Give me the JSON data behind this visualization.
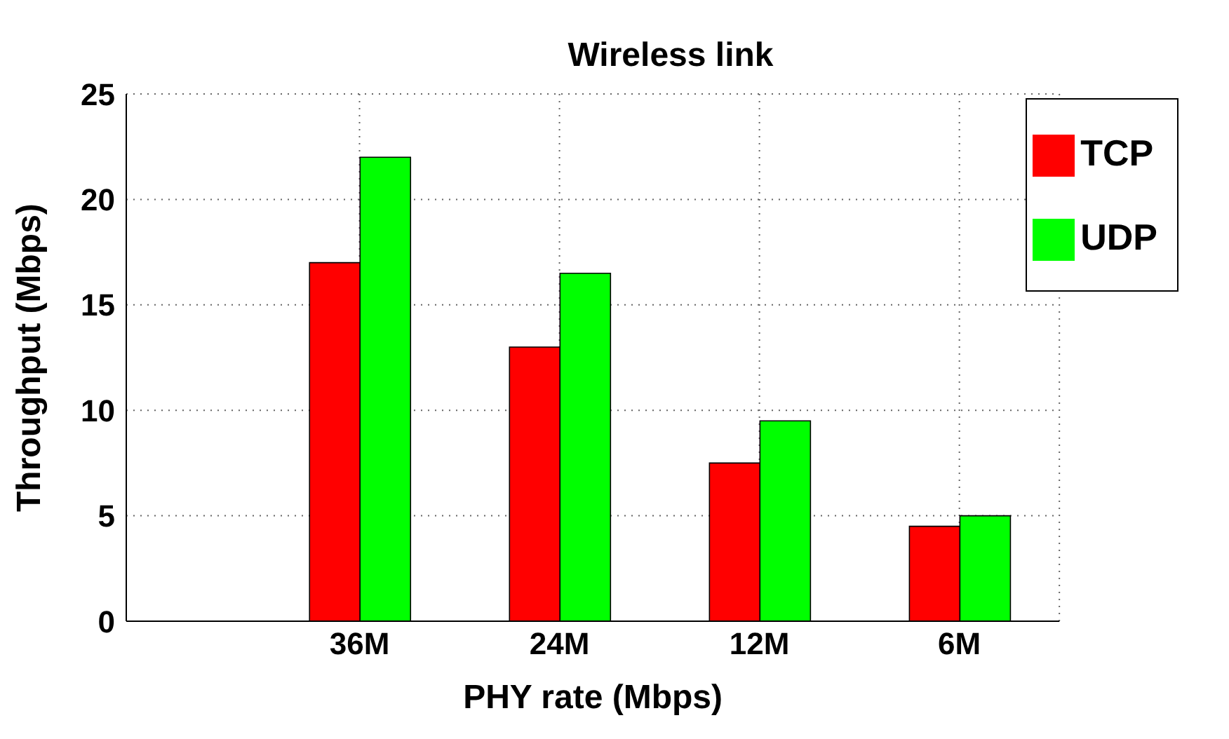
{
  "chart_data": {
    "type": "bar",
    "title": "Wireless link",
    "xlabel": "PHY rate (Mbps)",
    "ylabel": "Throughput (Mbps)",
    "categories": [
      "36M",
      "24M",
      "12M",
      "6M"
    ],
    "series": [
      {
        "name": "TCP",
        "color": "#ff0000",
        "values": [
          17,
          13,
          7.5,
          4.5
        ]
      },
      {
        "name": "UDP",
        "color": "#00ff00",
        "values": [
          22,
          16.5,
          9.5,
          5
        ]
      }
    ],
    "ylim": [
      0,
      25
    ],
    "yticks": [
      0,
      5,
      10,
      15,
      20,
      25
    ],
    "grid": true,
    "legend": "top right"
  }
}
